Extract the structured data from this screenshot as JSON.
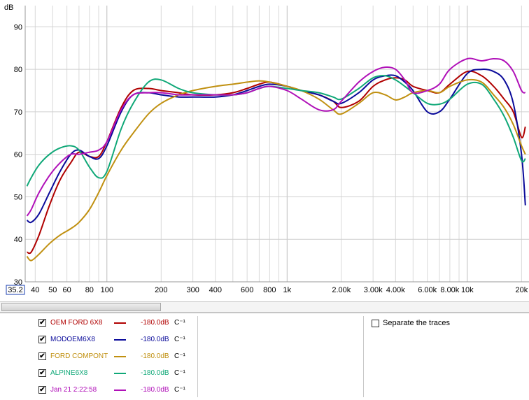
{
  "chart_data": {
    "type": "line",
    "ylabel": "dB",
    "x_scale": "log",
    "xlim": [
      35.2,
      22000
    ],
    "ylim": [
      30,
      95
    ],
    "y_ticks": [
      30,
      40,
      50,
      60,
      70,
      80,
      90
    ],
    "x_ticks": [
      {
        "value": 35.2,
        "label": "35.2"
      },
      {
        "value": 40,
        "label": "40"
      },
      {
        "value": 50,
        "label": "50"
      },
      {
        "value": 60,
        "label": "60"
      },
      {
        "value": 80,
        "label": "80"
      },
      {
        "value": 100,
        "label": "100"
      },
      {
        "value": 200,
        "label": "200"
      },
      {
        "value": 300,
        "label": "300"
      },
      {
        "value": 400,
        "label": "400"
      },
      {
        "value": 600,
        "label": "600"
      },
      {
        "value": 800,
        "label": "800"
      },
      {
        "value": 1000,
        "label": "1k"
      },
      {
        "value": 2000,
        "label": "2.00k"
      },
      {
        "value": 3000,
        "label": "3.00k"
      },
      {
        "value": 4000,
        "label": "4.00k"
      },
      {
        "value": 6000,
        "label": "6.00k"
      },
      {
        "value": 8000,
        "label": "8.00k"
      },
      {
        "value": 10000,
        "label": "10k"
      },
      {
        "value": 20000,
        "label": "20k"
      }
    ],
    "grid": true,
    "series": [
      {
        "name": "OEM FORD 6X8",
        "color": "#b00000",
        "x": [
          36,
          38,
          42,
          48,
          55,
          63,
          70,
          80,
          90,
          100,
          120,
          140,
          170,
          200,
          250,
          300,
          400,
          500,
          600,
          700,
          800,
          1000,
          1200,
          1500,
          1800,
          2000,
          2500,
          3000,
          3500,
          4000,
          4500,
          5000,
          6000,
          7000,
          8000,
          10000,
          12000,
          14000,
          16000,
          18000,
          20000,
          21000
        ],
        "y": [
          37,
          37,
          41,
          48,
          54,
          58,
          60.5,
          59.5,
          59.5,
          63,
          71,
          75,
          75.5,
          75,
          74.5,
          74,
          74,
          74.5,
          75.5,
          76.5,
          77,
          76,
          75,
          74,
          72.5,
          71,
          72.5,
          76,
          77.5,
          78,
          77.5,
          76,
          75,
          74.5,
          76.5,
          79.5,
          78.5,
          76,
          73,
          70,
          64,
          66.5
        ]
      },
      {
        "name": "MODOEM6X8",
        "color": "#0a0a9a",
        "x": [
          36,
          38,
          42,
          48,
          55,
          63,
          70,
          80,
          90,
          100,
          120,
          140,
          170,
          200,
          250,
          300,
          400,
          500,
          600,
          700,
          800,
          1000,
          1200,
          1500,
          1800,
          2000,
          2500,
          3000,
          3500,
          4000,
          4500,
          5000,
          6000,
          7000,
          8000,
          10000,
          12000,
          14000,
          16000,
          18000,
          20000,
          21000
        ],
        "y": [
          44.5,
          44,
          46,
          51,
          56,
          60,
          61,
          59.5,
          59,
          62,
          70,
          74,
          74.5,
          74,
          73.5,
          73.5,
          73.5,
          74,
          75,
          76,
          76.5,
          76,
          75,
          74,
          72.5,
          72,
          74.5,
          77.5,
          78.5,
          78.5,
          77,
          75,
          70,
          70,
          73,
          79,
          80,
          79.5,
          77.5,
          72,
          60,
          48
        ]
      },
      {
        "name": "FORD COMPONT",
        "color": "#c09010",
        "x": [
          36,
          38,
          42,
          48,
          55,
          63,
          70,
          80,
          90,
          100,
          120,
          140,
          170,
          200,
          250,
          300,
          400,
          500,
          600,
          700,
          800,
          1000,
          1200,
          1500,
          1800,
          2000,
          2500,
          3000,
          3500,
          4000,
          4500,
          5000,
          6000,
          7000,
          8000,
          10000,
          12000,
          14000,
          16000,
          18000,
          20000,
          21000
        ],
        "y": [
          36,
          35,
          36.5,
          39,
          41,
          42.5,
          44,
          47,
          51,
          55,
          61,
          65,
          69.5,
          72,
          74,
          75,
          76,
          76.5,
          77,
          77.3,
          77,
          76,
          75,
          73,
          70.5,
          69.5,
          72,
          74.5,
          74,
          72.8,
          73.5,
          74.5,
          75,
          74.5,
          76,
          77.5,
          77,
          74,
          71,
          67,
          62,
          60
        ]
      },
      {
        "name": "ALPINE6X8",
        "color": "#10a878",
        "x": [
          36,
          38,
          42,
          48,
          55,
          63,
          70,
          80,
          90,
          100,
          120,
          140,
          170,
          200,
          250,
          300,
          400,
          500,
          600,
          700,
          800,
          1000,
          1200,
          1500,
          1800,
          2000,
          2500,
          3000,
          3500,
          4000,
          4500,
          5000,
          6000,
          7000,
          8000,
          10000,
          12000,
          14000,
          16000,
          18000,
          20000,
          21000
        ],
        "y": [
          52.5,
          54.5,
          57.5,
          60,
          61.5,
          62,
          61,
          57,
          54.5,
          56,
          66,
          72,
          77,
          77.5,
          75.5,
          74.5,
          74,
          74,
          74.5,
          75.5,
          76,
          75.5,
          75,
          74.5,
          73.5,
          73,
          75.5,
          78,
          78.5,
          77.5,
          76,
          74.5,
          72,
          71.8,
          73,
          76.5,
          76.5,
          73,
          69,
          64,
          58.5,
          59
        ]
      },
      {
        "name": "Jan 21 2:22:58",
        "color": "#b010b8",
        "x": [
          36,
          38,
          42,
          48,
          55,
          63,
          70,
          80,
          90,
          100,
          120,
          140,
          170,
          200,
          250,
          300,
          400,
          500,
          600,
          700,
          800,
          1000,
          1200,
          1500,
          1800,
          2000,
          2500,
          3000,
          3500,
          4000,
          4500,
          5000,
          6000,
          7000,
          8000,
          10000,
          12000,
          14000,
          16000,
          18000,
          20000,
          21000
        ],
        "y": [
          45.5,
          47,
          51,
          55,
          58,
          60,
          60,
          60.5,
          61,
          63,
          70.5,
          74,
          74.5,
          74.5,
          74,
          74,
          74,
          74,
          74.5,
          75.5,
          76,
          75,
          73,
          70.5,
          70.5,
          72.5,
          77,
          79.5,
          80.5,
          80,
          77.5,
          74.5,
          75,
          76.5,
          80,
          82.5,
          82,
          82.5,
          82,
          79.5,
          75,
          74.5
        ]
      }
    ]
  },
  "legend": {
    "items": [
      {
        "name": "OEM FORD 6X8",
        "color": "#b00000",
        "value": "-180.0dB",
        "unit": "C⁻¹",
        "check": "✔"
      },
      {
        "name": "MODOEM6X8",
        "color": "#0a0a9a",
        "value": "-180.0dB",
        "unit": "C⁻¹",
        "check": "✔"
      },
      {
        "name": "FORD COMPONT",
        "color": "#c09010",
        "value": "-180.0dB",
        "unit": "C⁻¹",
        "check": "✔"
      },
      {
        "name": "ALPINE6X8",
        "color": "#10a878",
        "value": "-180.0dB",
        "unit": "C⁻¹",
        "check": "✔"
      },
      {
        "name": "Jan 21 2:22:58",
        "color": "#b010b8",
        "value": "-180.0dB",
        "unit": "C⁻¹",
        "check": "✔"
      }
    ],
    "separate_label": "Separate the traces"
  }
}
